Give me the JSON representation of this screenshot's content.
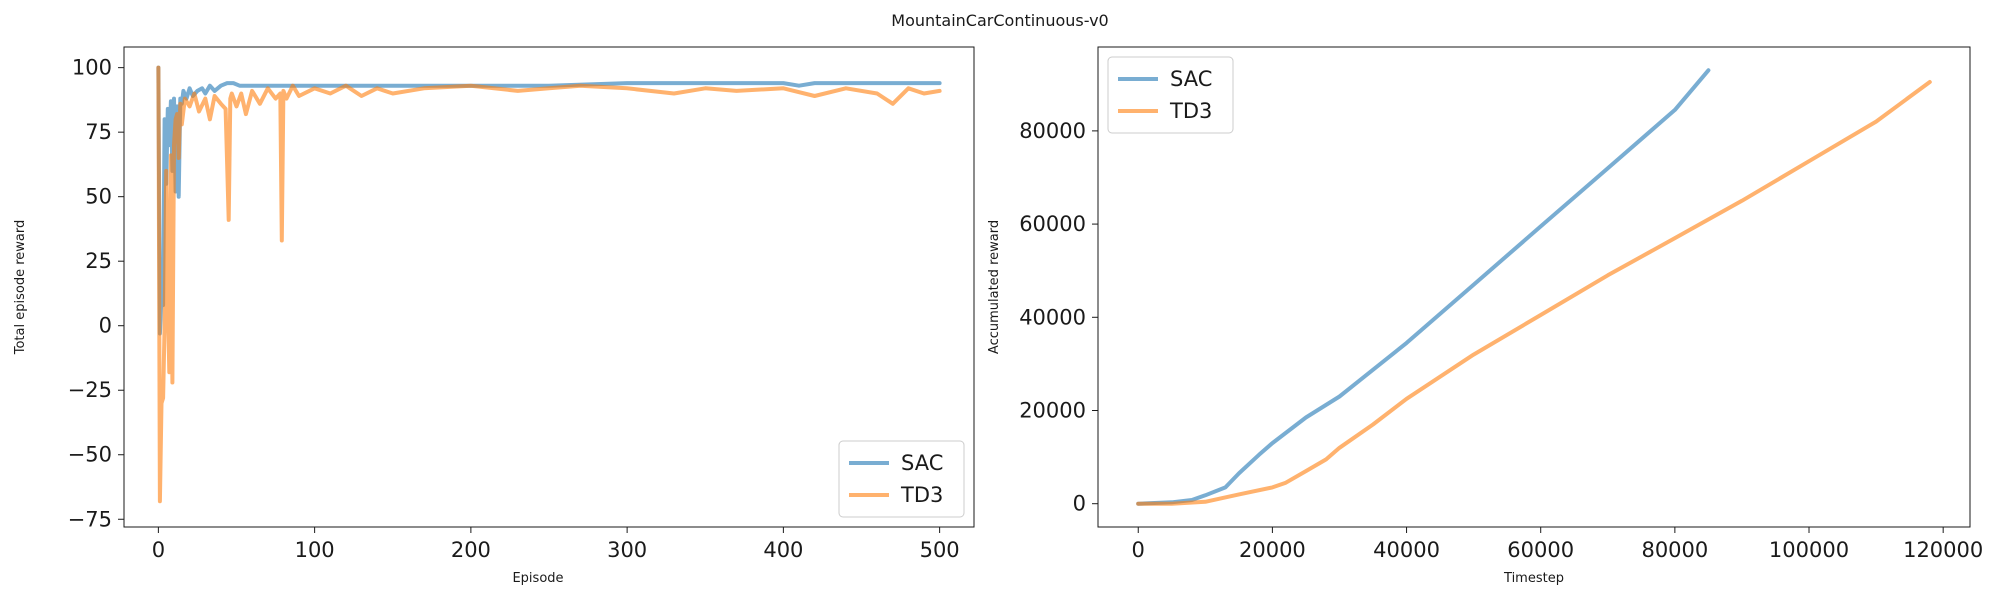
{
  "figure": {
    "title": "MountainCarContinuous-v0"
  },
  "colors": {
    "SAC": "#1f77b4",
    "TD3": "#ff7f0e"
  },
  "chart_data": [
    {
      "type": "line",
      "xlabel": "Episode",
      "ylabel": "Total episode reward",
      "xlim": [
        -22,
        522
      ],
      "ylim": [
        -78,
        108
      ],
      "xticks": [
        0,
        100,
        200,
        300,
        400,
        500
      ],
      "yticks": [
        -75,
        -50,
        -25,
        0,
        25,
        50,
        75,
        100
      ],
      "legend": "lower-right",
      "series": [
        {
          "name": "SAC",
          "x": [
            0,
            1,
            2,
            3,
            4,
            5,
            6,
            7,
            8,
            9,
            10,
            11,
            12,
            13,
            14,
            15,
            16,
            18,
            20,
            22,
            25,
            28,
            30,
            33,
            36,
            40,
            44,
            48,
            52,
            60,
            70,
            80,
            90,
            100,
            120,
            150,
            200,
            250,
            300,
            350,
            400,
            410,
            420,
            450,
            480,
            500
          ],
          "y": [
            100,
            -3,
            12,
            8,
            80,
            55,
            84,
            70,
            87,
            60,
            88,
            52,
            85,
            50,
            88,
            86,
            91,
            88,
            92,
            89,
            91,
            92,
            90,
            93,
            91,
            93,
            94,
            94,
            93,
            93,
            93,
            93,
            93,
            93,
            93,
            93,
            93,
            93,
            94,
            94,
            94,
            93,
            94,
            94,
            94,
            94
          ]
        },
        {
          "name": "TD3",
          "x": [
            0,
            1,
            2,
            3,
            4,
            5,
            6,
            7,
            8,
            9,
            10,
            11,
            12,
            13,
            14,
            15,
            17,
            20,
            23,
            26,
            30,
            33,
            36,
            40,
            43,
            45,
            46,
            47,
            50,
            53,
            56,
            60,
            65,
            70,
            75,
            78,
            79,
            80,
            82,
            86,
            90,
            100,
            110,
            120,
            130,
            140,
            150,
            170,
            200,
            230,
            250,
            270,
            300,
            330,
            350,
            370,
            400,
            420,
            440,
            460,
            470,
            480,
            490,
            500
          ],
          "y": [
            100,
            -68,
            -30,
            -28,
            0,
            60,
            10,
            -18,
            66,
            -22,
            70,
            80,
            82,
            65,
            86,
            78,
            88,
            85,
            90,
            83,
            88,
            80,
            89,
            86,
            84,
            41,
            88,
            90,
            85,
            90,
            82,
            91,
            86,
            92,
            88,
            90,
            33,
            91,
            88,
            93,
            89,
            92,
            90,
            93,
            89,
            92,
            90,
            92,
            93,
            91,
            92,
            93,
            92,
            90,
            92,
            91,
            92,
            89,
            92,
            90,
            86,
            92,
            90,
            91
          ]
        }
      ]
    },
    {
      "type": "line",
      "xlabel": "Timestep",
      "ylabel": "Accumulated reward",
      "xlim": [
        -6000,
        124000
      ],
      "ylim": [
        -5000,
        98000
      ],
      "xticks": [
        0,
        20000,
        40000,
        60000,
        80000,
        100000,
        120000
      ],
      "yticks": [
        0,
        20000,
        40000,
        60000,
        80000
      ],
      "legend": "top-left",
      "series": [
        {
          "name": "SAC",
          "x": [
            0,
            5000,
            8000,
            10000,
            13000,
            15000,
            18000,
            20000,
            25000,
            30000,
            40000,
            50000,
            60000,
            70000,
            80000,
            85000
          ],
          "y": [
            0,
            300,
            800,
            1800,
            3500,
            6500,
            10500,
            13000,
            18500,
            23000,
            34500,
            47000,
            59500,
            72000,
            84500,
            93000
          ]
        },
        {
          "name": "TD3",
          "x": [
            0,
            5000,
            10000,
            15000,
            20000,
            22000,
            25000,
            28000,
            30000,
            35000,
            40000,
            50000,
            60000,
            70000,
            80000,
            90000,
            100000,
            110000,
            118000
          ],
          "y": [
            0,
            0,
            400,
            2000,
            3500,
            4500,
            7000,
            9500,
            12000,
            17000,
            22500,
            32000,
            40500,
            49000,
            57000,
            65000,
            73500,
            82000,
            90500
          ]
        }
      ]
    }
  ]
}
